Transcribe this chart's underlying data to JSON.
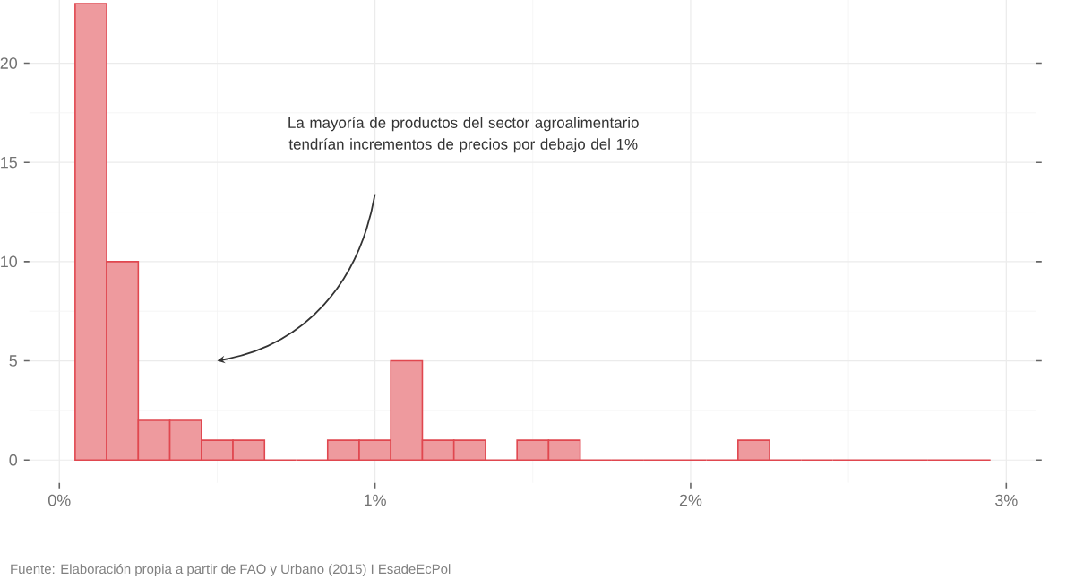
{
  "chart_data": {
    "type": "histogram",
    "bins": [
      0.05,
      0.15,
      0.25,
      0.35,
      0.45,
      0.55,
      0.65,
      0.75,
      0.85,
      0.95,
      1.05,
      1.15,
      1.25,
      1.35,
      1.45,
      1.55,
      1.65,
      1.75,
      1.85,
      1.95,
      2.05,
      2.15,
      2.25,
      2.35,
      2.45,
      2.55,
      2.65,
      2.75,
      2.85,
      2.95
    ],
    "values": [
      23,
      10,
      2,
      2,
      1,
      1,
      0,
      0,
      1,
      1,
      5,
      1,
      1,
      0,
      1,
      1,
      0,
      0,
      0,
      0,
      0,
      1,
      0,
      0,
      0,
      0,
      0,
      0,
      0
    ],
    "color": "#e0474f",
    "xlim": [
      -0.095,
      3.095
    ],
    "ylim": [
      -1.15,
      24.15
    ],
    "xticks": [
      {
        "value": 0,
        "label": "0%"
      },
      {
        "value": 1,
        "label": "1%"
      },
      {
        "value": 2,
        "label": "2%"
      },
      {
        "value": 3,
        "label": "3%"
      }
    ],
    "yticks": [
      0,
      5,
      10,
      15,
      20
    ],
    "grid": true,
    "annotations": [
      "La mayoría de productos del sector agroalimentario tendrían incrementos de precios por debajo del 1%",
      "Fuente: Elaboración propia a partir de FAO y Urbano (2015) I EsadeEcPol"
    ]
  }
}
